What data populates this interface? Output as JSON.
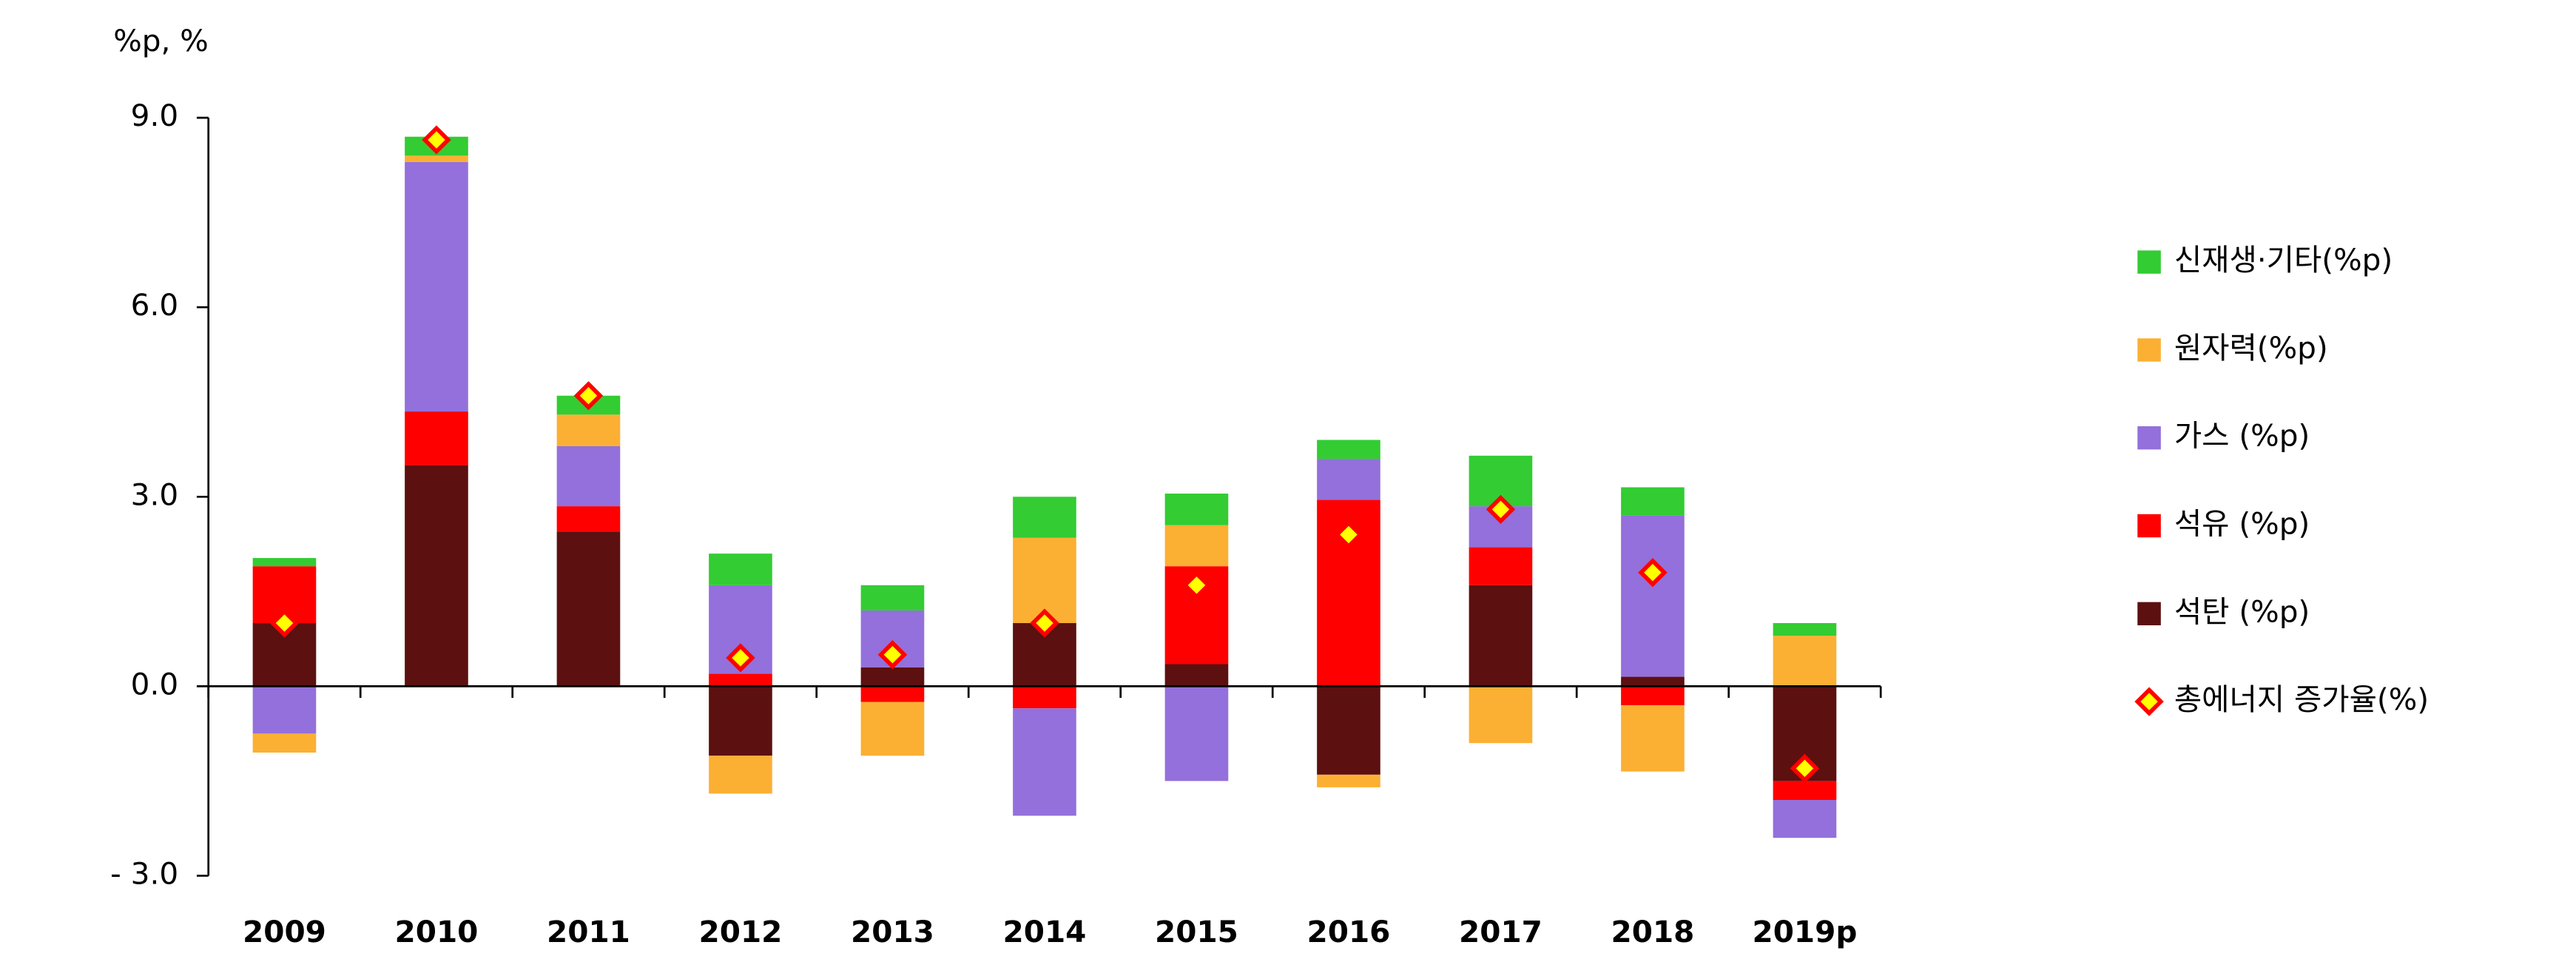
{
  "chart_data": {
    "type": "bar",
    "stacked": true,
    "y_label": "%p, %",
    "categories": [
      "2009",
      "2010",
      "2011",
      "2012",
      "2013",
      "2014",
      "2015",
      "2016",
      "2017",
      "2018",
      "2019p"
    ],
    "series": [
      {
        "name": "석탄 (%p)",
        "color": "#5c1010",
        "values": [
          1.0,
          3.5,
          2.45,
          -1.1,
          0.3,
          1.0,
          0.35,
          -1.4,
          1.6,
          0.15,
          -1.5
        ]
      },
      {
        "name": "석유 (%p)",
        "color": "#ff0000",
        "values": [
          0.9,
          0.85,
          0.4,
          0.2,
          -0.25,
          -0.35,
          1.55,
          2.95,
          0.6,
          -0.3,
          -0.3
        ]
      },
      {
        "name": "가스 (%p)",
        "color": "#9370db",
        "values": [
          -0.75,
          3.95,
          0.95,
          1.4,
          0.9,
          -1.7,
          -1.5,
          0.65,
          0.65,
          2.55,
          -0.6
        ]
      },
      {
        "name": "원자력(%p)",
        "color": "#fbb034",
        "values": [
          -0.3,
          0.1,
          0.5,
          -0.6,
          -0.85,
          1.35,
          0.65,
          -0.2,
          -0.9,
          -1.05,
          0.8
        ]
      },
      {
        "name": "신재생·기타(%p)",
        "color": "#33cc33",
        "values": [
          0.13,
          0.3,
          0.3,
          0.5,
          0.4,
          0.65,
          0.5,
          0.3,
          0.8,
          0.45,
          0.2
        ]
      },
      {
        "name": "총에너지 증가율(%)",
        "type": "scatter",
        "marker": "diamond",
        "color": "#ffff00",
        "edgecolor": "#ff0000",
        "values": [
          1.0,
          8.65,
          4.6,
          0.45,
          0.5,
          1.0,
          1.6,
          2.4,
          2.8,
          1.8,
          -1.3
        ]
      }
    ],
    "ylim": [
      -3,
      9
    ],
    "yticks": [
      {
        "value": -3,
        "label": "- 3.0"
      },
      {
        "value": 0,
        "label": "0.0"
      },
      {
        "value": 3,
        "label": "3.0"
      },
      {
        "value": 6,
        "label": "6.0"
      },
      {
        "value": 9,
        "label": "9.0"
      }
    ],
    "grid": false,
    "legend": "right"
  }
}
